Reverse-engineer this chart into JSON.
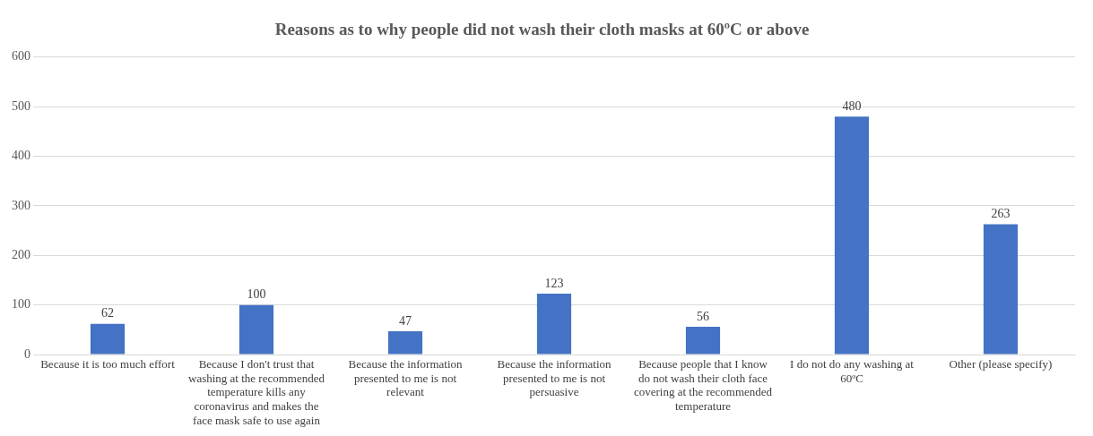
{
  "chart_data": {
    "type": "bar",
    "title": "Reasons as to why people did not wash their cloth masks at 60ºC or above",
    "categories": [
      "Because it is too much effort",
      "Because I don't trust that washing at the recommended temperature kills any coronavirus and makes the face mask safe to use again",
      "Because the information presented to me is not relevant",
      "Because the information presented to me is not persuasive",
      "Because people that I know do not wash their cloth face covering at the recommended temperature",
      "I do not do any washing at 60ºC",
      "Other (please specify)"
    ],
    "values": [
      62,
      100,
      47,
      123,
      56,
      480,
      263
    ],
    "color": "#4472c4",
    "ylim": [
      0,
      600
    ],
    "yticks": [
      0,
      100,
      200,
      300,
      400,
      500,
      600
    ],
    "grid": "y",
    "data_labels": true,
    "legend": false
  }
}
